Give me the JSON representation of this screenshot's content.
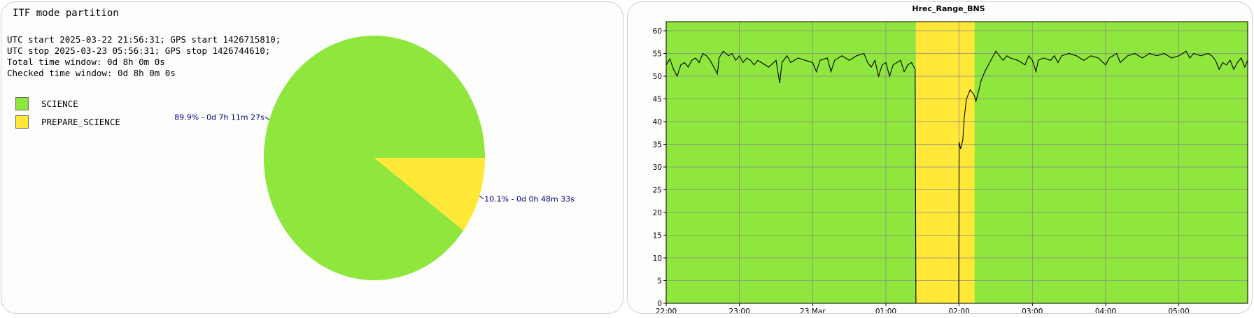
{
  "left_panel": {
    "title": "ITF mode partition",
    "info_lines": [
      "UTC start 2025-03-22 21:56:31; GPS start 1426715810;",
      "UTC stop 2025-03-23 05:56:31; GPS stop 1426744610;",
      "Total time window: 0d 8h 0m 0s",
      "Checked time window: 0d 8h 0m 0s"
    ]
  },
  "colors": {
    "science": "#8fe63c",
    "prepare_science": "#ffe838",
    "label_text": "#000080",
    "grid": "#8a8a8a"
  },
  "chart_data": [
    {
      "type": "pie",
      "title": "",
      "legend": [
        "SCIENCE",
        "PREPARE_SCIENCE"
      ],
      "slices": [
        {
          "name": "SCIENCE",
          "value": 89.9,
          "label": "89.9% - 0d 7h 11m 27s"
        },
        {
          "name": "PREPARE_SCIENCE",
          "value": 10.1,
          "label": "10.1% - 0d 0h 48m 33s"
        }
      ]
    },
    {
      "type": "line",
      "title": "Hrec_Range_BNS",
      "xlabel": "",
      "ylabel": "",
      "x_tick_labels": [
        "22:00",
        "23:00",
        "23 Mar",
        "01:00",
        "02:00",
        "03:00",
        "04:00",
        "05:00"
      ],
      "x_tick_hours": [
        22,
        23,
        24,
        25,
        26,
        27,
        28,
        29
      ],
      "x_range_hours": [
        22,
        29.94
      ],
      "ylim": [
        0,
        62
      ],
      "y_ticks": [
        0,
        5,
        10,
        15,
        20,
        25,
        30,
        35,
        40,
        45,
        50,
        55,
        60
      ],
      "grid": true,
      "background_bands": [
        {
          "state": "SCIENCE",
          "start_hour": 22,
          "end_hour": 25.41
        },
        {
          "state": "PREPARE_SCIENCE",
          "start_hour": 25.41,
          "end_hour": 26.21
        },
        {
          "state": "SCIENCE",
          "start_hour": 26.21,
          "end_hour": 29.94
        }
      ],
      "series": [
        {
          "values": [
            [
              22.0,
              52.5
            ],
            [
              22.05,
              53.8
            ],
            [
              22.1,
              51.5
            ],
            [
              22.15,
              50.0
            ],
            [
              22.2,
              52.5
            ],
            [
              22.25,
              53.0
            ],
            [
              22.3,
              52.0
            ],
            [
              22.35,
              53.5
            ],
            [
              22.4,
              54.0
            ],
            [
              22.45,
              53.0
            ],
            [
              22.5,
              55.0
            ],
            [
              22.55,
              54.5
            ],
            [
              22.6,
              53.5
            ],
            [
              22.65,
              52.0
            ],
            [
              22.7,
              50.5
            ],
            [
              22.72,
              54.0
            ],
            [
              22.78,
              55.5
            ],
            [
              22.85,
              54.5
            ],
            [
              22.9,
              55.0
            ],
            [
              22.95,
              53.5
            ],
            [
              23.0,
              54.5
            ],
            [
              23.05,
              53.0
            ],
            [
              23.1,
              54.0
            ],
            [
              23.15,
              53.5
            ],
            [
              23.2,
              52.5
            ],
            [
              23.25,
              53.5
            ],
            [
              23.3,
              53.0
            ],
            [
              23.4,
              52.0
            ],
            [
              23.5,
              53.5
            ],
            [
              23.55,
              48.5
            ],
            [
              23.58,
              53.0
            ],
            [
              23.65,
              54.5
            ],
            [
              23.7,
              53.0
            ],
            [
              23.8,
              54.0
            ],
            [
              23.9,
              53.5
            ],
            [
              24.0,
              53.0
            ],
            [
              24.05,
              51.0
            ],
            [
              24.1,
              53.5
            ],
            [
              24.2,
              54.0
            ],
            [
              24.25,
              51.0
            ],
            [
              24.3,
              53.5
            ],
            [
              24.4,
              54.5
            ],
            [
              24.5,
              53.5
            ],
            [
              24.6,
              54.5
            ],
            [
              24.7,
              55.0
            ],
            [
              24.75,
              53.0
            ],
            [
              24.8,
              52.0
            ],
            [
              24.85,
              53.5
            ],
            [
              24.9,
              50.0
            ],
            [
              24.95,
              52.5
            ],
            [
              25.0,
              53.0
            ],
            [
              25.05,
              50.0
            ],
            [
              25.1,
              52.5
            ],
            [
              25.2,
              53.5
            ],
            [
              25.25,
              51.0
            ],
            [
              25.3,
              52.5
            ],
            [
              25.35,
              53.0
            ],
            [
              25.4,
              51.5
            ],
            [
              25.41,
              0.0
            ]
          ]
        },
        {
          "values": [
            [
              25.995,
              0.0
            ],
            [
              26.0,
              35.5
            ],
            [
              26.02,
              34.0
            ],
            [
              26.05,
              36.0
            ],
            [
              26.07,
              41.0
            ],
            [
              26.1,
              45.0
            ],
            [
              26.15,
              47.0
            ],
            [
              26.2,
              46.0
            ],
            [
              26.23,
              44.5
            ],
            [
              26.27,
              47.0
            ],
            [
              26.3,
              49.0
            ],
            [
              26.35,
              51.0
            ],
            [
              26.4,
              52.5
            ],
            [
              26.45,
              54.0
            ],
            [
              26.5,
              55.5
            ],
            [
              26.55,
              54.5
            ],
            [
              26.6,
              53.5
            ],
            [
              26.65,
              54.5
            ],
            [
              26.7,
              54.0
            ],
            [
              26.8,
              53.5
            ],
            [
              26.9,
              52.5
            ],
            [
              26.95,
              54.5
            ],
            [
              27.0,
              53.5
            ],
            [
              27.05,
              51.0
            ],
            [
              27.08,
              53.5
            ],
            [
              27.15,
              54.0
            ],
            [
              27.25,
              53.5
            ],
            [
              27.3,
              54.5
            ],
            [
              27.35,
              53.0
            ],
            [
              27.4,
              54.5
            ],
            [
              27.5,
              55.0
            ],
            [
              27.6,
              54.5
            ],
            [
              27.7,
              53.5
            ],
            [
              27.8,
              54.5
            ],
            [
              27.9,
              54.0
            ],
            [
              28.0,
              52.5
            ],
            [
              28.05,
              54.0
            ],
            [
              28.15,
              55.0
            ],
            [
              28.2,
              53.0
            ],
            [
              28.3,
              54.5
            ],
            [
              28.4,
              55.0
            ],
            [
              28.5,
              54.0
            ],
            [
              28.6,
              55.0
            ],
            [
              28.7,
              54.5
            ],
            [
              28.8,
              55.0
            ],
            [
              28.9,
              54.0
            ],
            [
              29.0,
              54.5
            ],
            [
              29.1,
              55.5
            ],
            [
              29.15,
              54.0
            ],
            [
              29.2,
              55.0
            ],
            [
              29.3,
              54.5
            ],
            [
              29.4,
              55.0
            ],
            [
              29.45,
              54.5
            ],
            [
              29.5,
              53.5
            ],
            [
              29.55,
              51.5
            ],
            [
              29.6,
              53.0
            ],
            [
              29.65,
              52.5
            ],
            [
              29.7,
              53.5
            ],
            [
              29.75,
              51.5
            ],
            [
              29.8,
              53.0
            ],
            [
              29.85,
              54.0
            ],
            [
              29.9,
              52.0
            ],
            [
              29.94,
              53.5
            ]
          ]
        }
      ]
    }
  ]
}
